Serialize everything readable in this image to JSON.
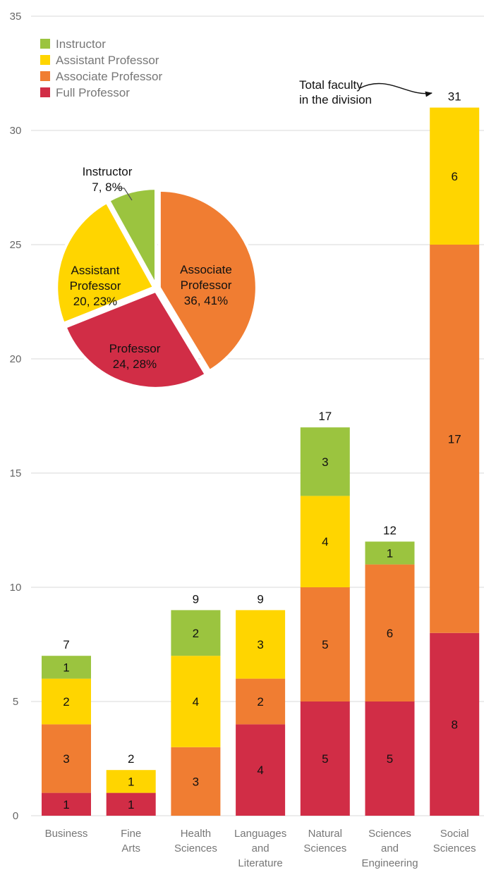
{
  "colors": {
    "Instructor": "#9bc43f",
    "Assistant Professor": "#ffd500",
    "Associate Professor": "#f07d32",
    "Full Professor": "#d12d46",
    "grid": "#d9d9d9"
  },
  "chart_data": [
    {
      "type": "bar",
      "stacked": true,
      "categories": [
        "Business",
        "Fine Arts",
        "Health Sciences",
        "Languages and Literature",
        "Natural Sciences",
        "Sciences and Engineering",
        "Social Sciences"
      ],
      "category_lines": [
        [
          "Business"
        ],
        [
          "Fine",
          "Arts"
        ],
        [
          "Health",
          "Sciences"
        ],
        [
          "Languages",
          "and",
          "Literature"
        ],
        [
          "Natural",
          "Sciences"
        ],
        [
          "Sciences",
          "and",
          "Engineering"
        ],
        [
          "Social",
          "Sciences"
        ]
      ],
      "series": [
        {
          "name": "Full Professor",
          "values": [
            1,
            1,
            0,
            4,
            5,
            5,
            8
          ]
        },
        {
          "name": "Associate Professor",
          "values": [
            3,
            0,
            3,
            2,
            5,
            6,
            17
          ]
        },
        {
          "name": "Assistant Professor",
          "values": [
            2,
            1,
            4,
            3,
            4,
            0,
            6
          ]
        },
        {
          "name": "Instructor",
          "values": [
            1,
            0,
            2,
            0,
            3,
            1,
            0
          ]
        }
      ],
      "totals": [
        7,
        2,
        9,
        9,
        17,
        12,
        31
      ],
      "ylim": [
        0,
        35
      ],
      "yticks": [
        0,
        5,
        10,
        15,
        20,
        25,
        30,
        35
      ],
      "grid": true,
      "legend": {
        "placement": "top-left",
        "entries": [
          "Instructor",
          "Assistant Professor",
          "Associate Professor",
          "Full Professor"
        ]
      },
      "annotation": {
        "lines": [
          "Total faculty",
          "in the division"
        ],
        "target": "Social Sciences"
      }
    },
    {
      "type": "pie",
      "slices": [
        {
          "series": "Associate Professor",
          "lines": [
            "Associate",
            "Professor",
            "36, 41%"
          ],
          "value": 36,
          "percent": 41
        },
        {
          "series": "Full Professor",
          "lines": [
            "Professor",
            "24, 28%"
          ],
          "value": 24,
          "percent": 28
        },
        {
          "series": "Assistant Professor",
          "lines": [
            "Assistant",
            "Professor",
            "20, 23%"
          ],
          "value": 20,
          "percent": 23
        },
        {
          "series": "Instructor",
          "lines": [
            "Instructor",
            "7, 8%"
          ],
          "value": 7,
          "percent": 8
        }
      ]
    }
  ]
}
